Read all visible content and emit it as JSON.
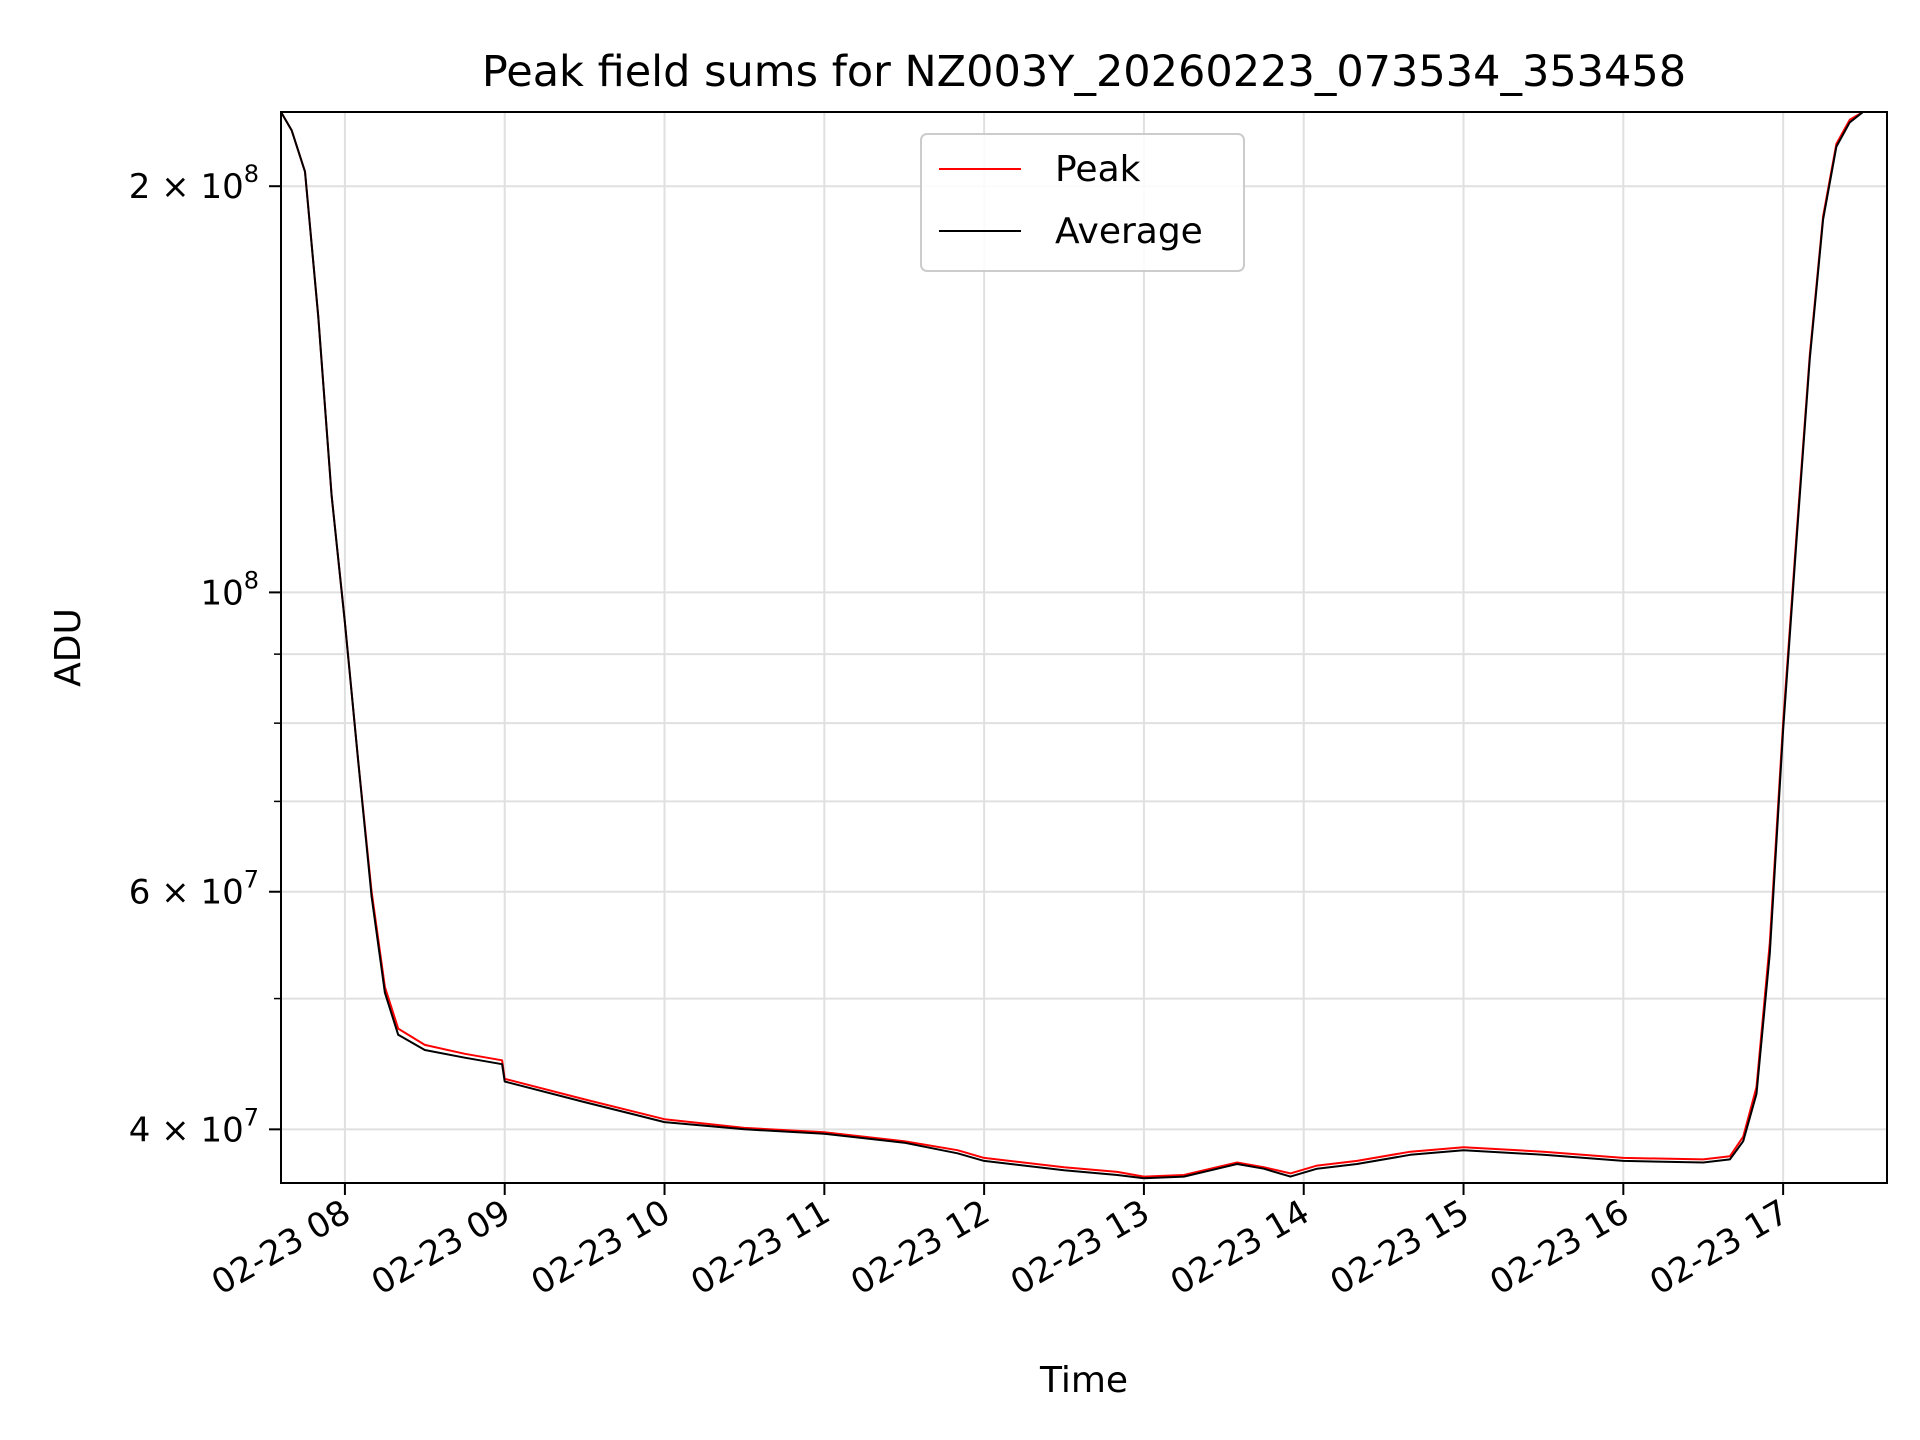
{
  "chart_data": {
    "type": "line",
    "title": "Peak field sums for NZ003Y_20260223_073534_353458",
    "xlabel": "Time",
    "ylabel": "ADU",
    "yscale": "log",
    "grid": true,
    "legend_position": "top-center",
    "xlim": [
      "2026-02-23 07:36",
      "2026-02-23 17:39"
    ],
    "ylim": [
      36500000,
      227000000
    ],
    "x_ticks": [
      "02-23 08",
      "02-23 09",
      "02-23 10",
      "02-23 11",
      "02-23 12",
      "02-23 13",
      "02-23 14",
      "02-23 15",
      "02-23 16",
      "02-23 17"
    ],
    "y_ticks": [
      {
        "value": 40000000,
        "mantissa": "4",
        "base": "10",
        "exponent": "7"
      },
      {
        "value": 60000000,
        "mantissa": "6",
        "base": "10",
        "exponent": "7"
      },
      {
        "value": 100000000,
        "mantissa": "",
        "base": "10",
        "exponent": "8"
      },
      {
        "value": 200000000,
        "mantissa": "2",
        "base": "10",
        "exponent": "8"
      }
    ],
    "y_minor_ticks": [
      50000000,
      70000000,
      80000000,
      90000000
    ],
    "series": [
      {
        "name": "Peak",
        "color": "#ff0000",
        "x": [
          "2026-02-23 07:36",
          "2026-02-23 07:40",
          "2026-02-23 07:45",
          "2026-02-23 07:50",
          "2026-02-23 07:55",
          "2026-02-23 08:00",
          "2026-02-23 08:05",
          "2026-02-23 08:10",
          "2026-02-23 08:15",
          "2026-02-23 08:20",
          "2026-02-23 08:30",
          "2026-02-23 08:45",
          "2026-02-23 08:59",
          "2026-02-23 09:00",
          "2026-02-23 09:30",
          "2026-02-23 10:00",
          "2026-02-23 10:30",
          "2026-02-23 11:00",
          "2026-02-23 11:30",
          "2026-02-23 11:50",
          "2026-02-23 12:00",
          "2026-02-23 12:30",
          "2026-02-23 12:50",
          "2026-02-23 13:00",
          "2026-02-23 13:15",
          "2026-02-23 13:30",
          "2026-02-23 13:35",
          "2026-02-23 13:45",
          "2026-02-23 13:55",
          "2026-02-23 14:05",
          "2026-02-23 14:20",
          "2026-02-23 14:40",
          "2026-02-23 15:00",
          "2026-02-23 15:30",
          "2026-02-23 16:00",
          "2026-02-23 16:30",
          "2026-02-23 16:40",
          "2026-02-23 16:45",
          "2026-02-23 16:50",
          "2026-02-23 16:55",
          "2026-02-23 17:00",
          "2026-02-23 17:05",
          "2026-02-23 17:10",
          "2026-02-23 17:15",
          "2026-02-23 17:20",
          "2026-02-23 17:25",
          "2026-02-23 17:30",
          "2026-02-23 17:35",
          "2026-02-23 17:39"
        ],
        "y": [
          227000000,
          220000000,
          205000000,
          160000000,
          118000000,
          95000000,
          75000000,
          60000000,
          51000000,
          47500000,
          46200000,
          45500000,
          45000000,
          43600000,
          42100000,
          40700000,
          40100000,
          39800000,
          39200000,
          38600000,
          38100000,
          37500000,
          37200000,
          36900000,
          37000000,
          37600000,
          37800000,
          37500000,
          37100000,
          37600000,
          37900000,
          38500000,
          38800000,
          38500000,
          38100000,
          38000000,
          38200000,
          39500000,
          43000000,
          55000000,
          80000000,
          110000000,
          150000000,
          190000000,
          215000000,
          224000000,
          227000000,
          227000000,
          227000000
        ]
      },
      {
        "name": "Average",
        "color": "#000000",
        "x": [
          "2026-02-23 07:36",
          "2026-02-23 07:40",
          "2026-02-23 07:45",
          "2026-02-23 07:50",
          "2026-02-23 07:55",
          "2026-02-23 08:00",
          "2026-02-23 08:05",
          "2026-02-23 08:10",
          "2026-02-23 08:15",
          "2026-02-23 08:20",
          "2026-02-23 08:30",
          "2026-02-23 08:45",
          "2026-02-23 08:59",
          "2026-02-23 09:00",
          "2026-02-23 09:30",
          "2026-02-23 10:00",
          "2026-02-23 10:30",
          "2026-02-23 11:00",
          "2026-02-23 11:30",
          "2026-02-23 11:50",
          "2026-02-23 12:00",
          "2026-02-23 12:30",
          "2026-02-23 12:50",
          "2026-02-23 13:00",
          "2026-02-23 13:15",
          "2026-02-23 13:30",
          "2026-02-23 13:35",
          "2026-02-23 13:45",
          "2026-02-23 13:55",
          "2026-02-23 14:05",
          "2026-02-23 14:20",
          "2026-02-23 14:40",
          "2026-02-23 15:00",
          "2026-02-23 15:30",
          "2026-02-23 16:00",
          "2026-02-23 16:30",
          "2026-02-23 16:40",
          "2026-02-23 16:45",
          "2026-02-23 16:50",
          "2026-02-23 16:55",
          "2026-02-23 17:00",
          "2026-02-23 17:05",
          "2026-02-23 17:10",
          "2026-02-23 17:15",
          "2026-02-23 17:20",
          "2026-02-23 17:25",
          "2026-02-23 17:30",
          "2026-02-23 17:35",
          "2026-02-23 17:39"
        ],
        "y": [
          227000000,
          220000000,
          205000000,
          160000000,
          118000000,
          95000000,
          75000000,
          59500000,
          50500000,
          47000000,
          45800000,
          45200000,
          44700000,
          43400000,
          41900000,
          40500000,
          40000000,
          39700000,
          39100000,
          38400000,
          37900000,
          37300000,
          37000000,
          36800000,
          36900000,
          37500000,
          37700000,
          37400000,
          36900000,
          37400000,
          37700000,
          38300000,
          38600000,
          38300000,
          37900000,
          37800000,
          38000000,
          39200000,
          42500000,
          54000000,
          79000000,
          109000000,
          149000000,
          189000000,
          214000000,
          223000000,
          227000000,
          227000000,
          227000000
        ]
      }
    ]
  }
}
